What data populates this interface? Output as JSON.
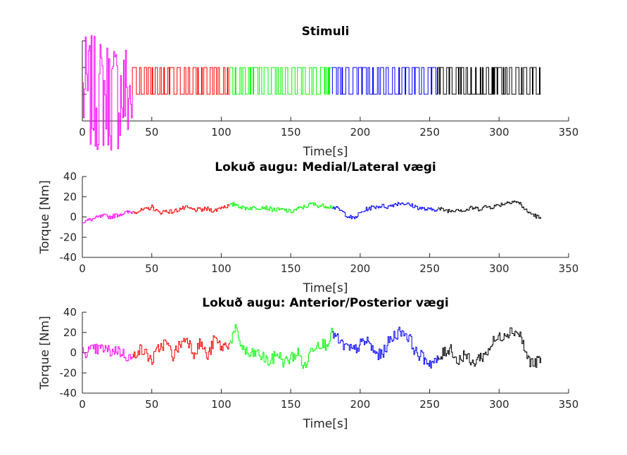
{
  "chart_data": [
    {
      "type": "line",
      "title": "Stimuli",
      "xlabel": "Time[s]",
      "ylabel": "",
      "xlim": [
        0,
        350
      ],
      "xticks": [
        0,
        50,
        100,
        150,
        200,
        250,
        300,
        350
      ],
      "show_yticklabels": false,
      "grid": false,
      "series": [
        {
          "color": "#ff00ff",
          "x": [
            0,
            36
          ],
          "y": [
            0,
            0
          ]
        },
        {
          "color": "#ff0000",
          "signal": "pseudo-random binary",
          "x": [
            36,
            106
          ],
          "levels": [
            0,
            1
          ]
        },
        {
          "color": "#00ff00",
          "signal": "pseudo-random binary",
          "x": [
            106,
            180
          ],
          "levels": [
            0,
            1
          ]
        },
        {
          "color": "#0000ff",
          "signal": "pseudo-random binary",
          "x": [
            180,
            256
          ],
          "levels": [
            0,
            1
          ]
        },
        {
          "color": "#000000",
          "signal": "pseudo-random binary",
          "x": [
            256,
            330
          ],
          "levels": [
            0,
            1
          ]
        }
      ]
    },
    {
      "type": "line",
      "title": "Lokuð augu: Medial/Lateral vægi",
      "xlabel": "Time[s]",
      "ylabel": "Torque [Nm]",
      "xlim": [
        0,
        350
      ],
      "ylim": [
        -40,
        40
      ],
      "xticks": [
        0,
        50,
        100,
        150,
        200,
        250,
        300,
        350
      ],
      "yticks": [
        -40,
        -20,
        0,
        20,
        40
      ],
      "grid": false,
      "series": [
        {
          "color": "#ff00ff",
          "x": [
            0,
            5,
            10,
            15,
            20,
            25,
            30,
            36
          ],
          "y": [
            -5,
            -3,
            -1,
            1,
            0,
            2,
            4,
            5
          ]
        },
        {
          "color": "#ff0000",
          "x": [
            36,
            45,
            50,
            55,
            60,
            65,
            70,
            75,
            80,
            85,
            90,
            95,
            100,
            106
          ],
          "y": [
            5,
            7,
            10,
            4,
            6,
            5,
            8,
            9,
            7,
            7,
            8,
            6,
            10,
            11
          ]
        },
        {
          "color": "#00ff00",
          "x": [
            106,
            110,
            115,
            120,
            125,
            130,
            135,
            140,
            145,
            150,
            155,
            160,
            165,
            170,
            175,
            180
          ],
          "y": [
            11,
            13,
            9,
            9,
            9,
            10,
            8,
            7,
            7,
            5,
            8,
            10,
            13,
            11,
            11,
            10
          ]
        },
        {
          "color": "#0000ff",
          "x": [
            180,
            185,
            190,
            195,
            200,
            205,
            210,
            215,
            220,
            225,
            230,
            235,
            240,
            245,
            250,
            256
          ],
          "y": [
            10,
            7,
            2,
            -2,
            4,
            8,
            10,
            11,
            10,
            13,
            14,
            12,
            10,
            8,
            7,
            8
          ]
        },
        {
          "color": "#000000",
          "x": [
            256,
            260,
            265,
            270,
            275,
            280,
            285,
            290,
            295,
            300,
            305,
            310,
            315,
            320,
            325,
            330
          ],
          "y": [
            8,
            7,
            6,
            8,
            6,
            9,
            8,
            10,
            10,
            12,
            14,
            16,
            13,
            5,
            2,
            -2
          ]
        }
      ]
    },
    {
      "type": "line",
      "title": "Lokuð augu: Anterior/Posterior vægi",
      "xlabel": "Time[s]",
      "ylabel": "Torque [Nm]",
      "xlim": [
        0,
        350
      ],
      "ylim": [
        -40,
        40
      ],
      "xticks": [
        0,
        50,
        100,
        150,
        200,
        250,
        300,
        350
      ],
      "yticks": [
        -40,
        -20,
        0,
        20,
        40
      ],
      "grid": false,
      "series": [
        {
          "color": "#ff00ff",
          "x": [
            0,
            5,
            10,
            15,
            20,
            25,
            30,
            36
          ],
          "y": [
            0,
            2,
            3,
            4,
            1,
            3,
            -2,
            -6
          ]
        },
        {
          "color": "#ff0000",
          "x": [
            36,
            40,
            45,
            50,
            55,
            60,
            65,
            70,
            75,
            80,
            85,
            90,
            95,
            100,
            106
          ],
          "y": [
            -6,
            4,
            0,
            -8,
            5,
            10,
            -3,
            8,
            15,
            0,
            10,
            -5,
            14,
            5,
            10
          ]
        },
        {
          "color": "#00ff00",
          "x": [
            106,
            110,
            115,
            120,
            125,
            130,
            135,
            140,
            145,
            150,
            155,
            160,
            165,
            170,
            175,
            180
          ],
          "y": [
            10,
            22,
            5,
            -3,
            0,
            -5,
            -10,
            0,
            -10,
            -5,
            0,
            -15,
            5,
            10,
            8,
            20
          ]
        },
        {
          "color": "#0000ff",
          "x": [
            180,
            185,
            190,
            195,
            200,
            205,
            210,
            215,
            220,
            225,
            230,
            235,
            240,
            245,
            250,
            256
          ],
          "y": [
            20,
            10,
            5,
            2,
            8,
            12,
            0,
            -3,
            10,
            18,
            22,
            15,
            0,
            -5,
            -10,
            -8
          ]
        },
        {
          "color": "#000000",
          "x": [
            256,
            260,
            265,
            270,
            275,
            280,
            285,
            290,
            295,
            300,
            305,
            310,
            315,
            320,
            325,
            330
          ],
          "y": [
            -8,
            0,
            5,
            -10,
            0,
            -12,
            -5,
            -2,
            10,
            15,
            20,
            22,
            18,
            -5,
            -12,
            -5
          ]
        }
      ]
    }
  ]
}
